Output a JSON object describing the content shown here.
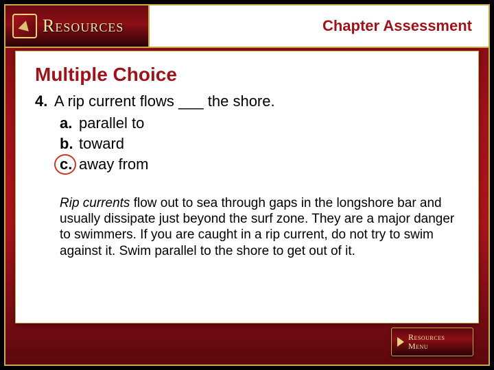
{
  "colors": {
    "accent_red": "#9e1219",
    "gold": "#c9a94a",
    "circle_red": "#d03522",
    "bg_white": "#ffffff"
  },
  "typography": {
    "body_family": "Arial",
    "logo_family": "Times New Roman",
    "heading_size_pt": 28,
    "question_size_pt": 22,
    "explanation_size_pt": 19
  },
  "header": {
    "logo_label": "Resources",
    "chapter_title": "Chapter Assessment"
  },
  "content": {
    "section_heading": "Multiple Choice",
    "question": {
      "number": "4.",
      "text": "A rip current flows ___ the shore."
    },
    "options": [
      {
        "letter": "a.",
        "text": "parallel to",
        "correct": false
      },
      {
        "letter": "b.",
        "text": "toward",
        "correct": false
      },
      {
        "letter": "c.",
        "text": "away from",
        "correct": true
      }
    ],
    "explanation": {
      "term": "Rip currents",
      "rest": " flow out to sea through gaps in the longshore bar and usually dissipate just beyond the surf zone. They are a major danger to swimmers. If you are caught in a rip current, do not try to swim against it. Swim parallel to the shore to get out of it."
    }
  },
  "footer": {
    "button_line1": "Resources",
    "button_line2": "Menu"
  }
}
